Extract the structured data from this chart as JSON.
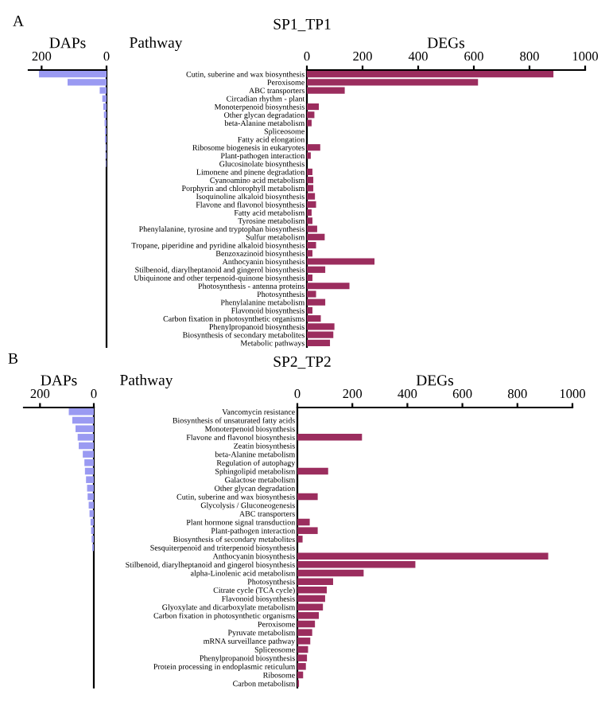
{
  "chart_data": [
    {
      "type": "bar",
      "orientation": "horizontal",
      "title": "DAPs",
      "annotations": [
        "A",
        "SP1_TP1"
      ],
      "color": "#9a9af2",
      "categories": [
        null,
        null,
        null,
        null,
        null,
        null,
        null,
        null,
        null,
        null,
        null,
        null,
        null,
        null,
        null,
        null,
        null,
        null,
        null,
        null,
        null,
        null,
        null,
        null,
        null,
        null,
        null,
        null,
        null,
        null,
        null,
        null,
        null,
        null
      ],
      "values": [
        208,
        120,
        21,
        13,
        10,
        8,
        6,
        5,
        5,
        3,
        3,
        2,
        0,
        0,
        0,
        0,
        0,
        0,
        0,
        0,
        0,
        0,
        0,
        0,
        0,
        0,
        0,
        0,
        0,
        0,
        0,
        0,
        0,
        0
      ],
      "xlim": [
        240,
        0
      ],
      "xticks": [
        200,
        0
      ]
    },
    {
      "type": "bar",
      "orientation": "horizontal",
      "title": "DEGs",
      "ylabel": "Pathway",
      "color": "#9b2d5e",
      "categories": [
        "Cutin, suberine and wax biosynthesis",
        "Peroxisome",
        "ABC transporters",
        "Circadian rhythm - plant",
        "Monoterpenoid biosynthesis",
        "Other glycan degradation",
        "beta-Alanine metabolism",
        "Spliceosome",
        "Fatty acid elongation",
        "Ribosome biogenesis in eukaryotes",
        "Plant-pathogen interaction",
        "Glucosinolate biosynthesis",
        "Limonene and pinene degradation",
        "Cyanoamino acid metabolism",
        "Porphyrin and chlorophyll metabolism",
        "Isoquinoline alkaloid biosynthesis",
        "Flavone and flavonol biosynthesis",
        "Fatty acid metabolism",
        "Tyrosine metabolism",
        "Phenylalanine, tyrosine and tryptophan biosynthesis",
        "Sulfur metabolism",
        "Tropane, piperidine and pyridine alkaloid biosynthesis",
        "Benzoxazinoid biosynthesis",
        "Anthocyanin biosynthesis",
        "Stilbenoid, diarylheptanoid and gingerol biosynthesis",
        "Ubiquinone and other terpenoid-quinone biosynthesis",
        "Photosynthesis - antenna proteins",
        "Photosynthesis",
        "Phenylalanine metabolism",
        "Flavonoid biosynthesis",
        "Carbon fixation in photosynthetic organisms",
        "Phenylpropanoid biosynthesis",
        "Biosynthesis of secondary metabolites",
        "Metabolic pathways"
      ],
      "values": [
        886,
        615,
        136,
        0,
        43,
        27,
        17,
        0,
        0,
        48,
        14,
        0,
        20,
        23,
        23,
        29,
        33,
        17,
        20,
        37,
        64,
        33,
        20,
        243,
        66,
        20,
        153,
        33,
        66,
        20,
        50,
        99,
        95,
        83
      ],
      "xlim": [
        0,
        1000
      ],
      "xticks": [
        0,
        200,
        400,
        600,
        800,
        1000
      ]
    },
    {
      "type": "bar",
      "orientation": "horizontal",
      "title": "DAPs",
      "annotations": [
        "B",
        "SP2_TP2"
      ],
      "color": "#9a9af2",
      "categories": [
        null,
        null,
        null,
        null,
        null,
        null,
        null,
        null,
        null,
        null,
        null,
        null,
        null,
        null,
        null,
        null,
        null,
        null,
        null,
        null,
        null,
        null,
        null,
        null,
        null,
        null,
        null,
        null,
        null,
        null,
        null,
        null,
        null
      ],
      "values": [
        93,
        80,
        68,
        60,
        56,
        41,
        35,
        33,
        29,
        25,
        23,
        19,
        16,
        12,
        10,
        8,
        6,
        0,
        0,
        0,
        0,
        0,
        0,
        0,
        0,
        0,
        0,
        0,
        0,
        0,
        0,
        0,
        0
      ],
      "xlim": [
        260,
        0
      ],
      "xticks": [
        200,
        0
      ]
    },
    {
      "type": "bar",
      "orientation": "horizontal",
      "title": "DEGs",
      "ylabel": "Pathway",
      "color": "#9b2d5e",
      "categories": [
        "Vancomycin resistance",
        "Biosynthesis of unsaturated fatty acids",
        "Monoterpenoid biosynthesis",
        "Flavone and flavonol biosynthesis",
        "Zeatin biosynthesis",
        "beta-Alanine metabolism",
        "Regulation of autophagy",
        "Sphingolipid metabolism",
        "Galactose metabolism",
        "Other glycan degradation",
        "Cutin, suberine and wax biosynthesis",
        "Glycolysis / Gluconeogenesis",
        "ABC transporters",
        "Plant hormone signal transduction",
        "Plant-pathogen interaction",
        "Biosynthesis of secondary metabolites",
        "Sesquiterpenoid and triterpenoid biosynthesis",
        "Anthocyanin biosynthesis",
        "Stilbenoid, diarylheptanoid and gingerol biosynthesis",
        "alpha-Linolenic acid metabolism",
        "Photosynthesis",
        "Citrate cycle (TCA cycle)",
        "Flavonoid biosynthesis",
        "Glyoxylate and dicarboxylate metabolism",
        "Carbon fixation in photosynthetic organisms",
        "Peroxisome",
        "Pyruvate metabolism",
        "mRNA surveillance pathway",
        "Spliceosome",
        "Phenylpropanoid biosynthesis",
        "Protein processing in endoplasmic reticulum",
        "Ribosome",
        "Carbon metabolism"
      ],
      "values": [
        0,
        0,
        0,
        235,
        0,
        0,
        0,
        112,
        0,
        0,
        74,
        0,
        0,
        45,
        74,
        19,
        0,
        912,
        429,
        241,
        130,
        107,
        101,
        93,
        78,
        64,
        54,
        47,
        39,
        35,
        31,
        21,
        6
      ],
      "xlim": [
        0,
        1000
      ],
      "xticks": [
        0,
        200,
        400,
        600,
        800,
        1000
      ]
    }
  ]
}
